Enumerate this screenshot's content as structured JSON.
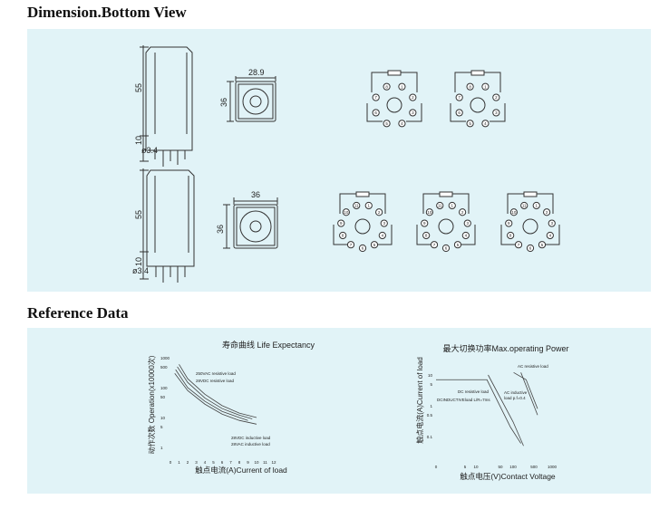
{
  "sections": {
    "dimension_title": "Dimension.Bottom View",
    "reference_title": "Reference Data"
  },
  "dimensions": {
    "height": "55",
    "pin_length": "10",
    "pin_dia": "ø3.4",
    "width_8pin": "28.9",
    "depth": "36",
    "width_11pin": "36"
  },
  "wiring": {
    "pins_8": [
      "1",
      "2",
      "3",
      "4",
      "5",
      "6",
      "7",
      "8"
    ],
    "pins_11": [
      "1",
      "2",
      "3",
      "4",
      "5",
      "6",
      "7",
      "8",
      "9",
      "10",
      "11"
    ]
  },
  "chart_data": [
    {
      "type": "line",
      "title": "寿命曲线 Life  Expectancy",
      "xlabel": "触点电流(A)Current of load",
      "ylabel": "动作次数 Operation(x10000次)",
      "x_ticks": [
        "0",
        "1",
        "2",
        "3",
        "4",
        "5",
        "6",
        "7",
        "8",
        "9",
        "10",
        "11",
        "12"
      ],
      "y_ticks": [
        "1000",
        "500",
        "100",
        "50",
        "10",
        "5",
        "1"
      ],
      "yscale": "log",
      "xlim": [
        0,
        12
      ],
      "ylim": [
        1,
        1000
      ],
      "annotations": [
        "250VAC resistive load",
        "28VDC resistive load",
        "28VDC inductive load",
        "28VAC inductive load"
      ],
      "series": [
        {
          "name": "250VAC resistive load",
          "x": [
            1,
            2,
            4,
            6,
            8,
            10
          ],
          "y": [
            600,
            200,
            60,
            25,
            14,
            10
          ]
        },
        {
          "name": "28VDC resistive load",
          "x": [
            0.8,
            2,
            4,
            6,
            8,
            9.5
          ],
          "y": [
            500,
            150,
            45,
            20,
            12,
            9
          ]
        },
        {
          "name": "28VDC inductive load",
          "x": [
            0.6,
            2,
            4,
            6,
            8,
            9
          ],
          "y": [
            400,
            100,
            35,
            16,
            10,
            8
          ]
        },
        {
          "name": "28VAC inductive load",
          "x": [
            0.5,
            2,
            4,
            6,
            8,
            10
          ],
          "y": [
            300,
            80,
            28,
            13,
            8,
            6
          ]
        }
      ]
    },
    {
      "type": "line",
      "title": "最大切换功率Max.operating Power",
      "xlabel": "触点电压(V)Contact Voltage",
      "ylabel": "触点电流(A)Current of load",
      "x_ticks": [
        "0",
        "5",
        "10",
        "50",
        "100",
        "500",
        "1000"
      ],
      "y_ticks": [
        "10",
        "5",
        "1",
        "0.5",
        "0.1"
      ],
      "yscale": "log",
      "annotations": [
        "AC resistive load",
        "DC resistive load",
        "DCINDUCTIVEload L/R=7ms",
        "AC inductive",
        "load p.f=0.4"
      ],
      "series": [
        {
          "name": "DC resistive load",
          "x": [
            0,
            28,
            90,
            250
          ],
          "y": [
            7,
            7,
            0.2,
            0.06
          ]
        },
        {
          "name": "DC inductive load",
          "x": [
            30,
            100,
            300
          ],
          "y": [
            10,
            0.3,
            0.05
          ]
        },
        {
          "name": "AC resistive load",
          "x": [
            110,
            350,
            600
          ],
          "y": [
            12,
            7,
            0.8
          ]
        },
        {
          "name": "AC inductive load",
          "x": [
            250,
            600
          ],
          "y": [
            12,
            0.5
          ]
        }
      ]
    }
  ]
}
